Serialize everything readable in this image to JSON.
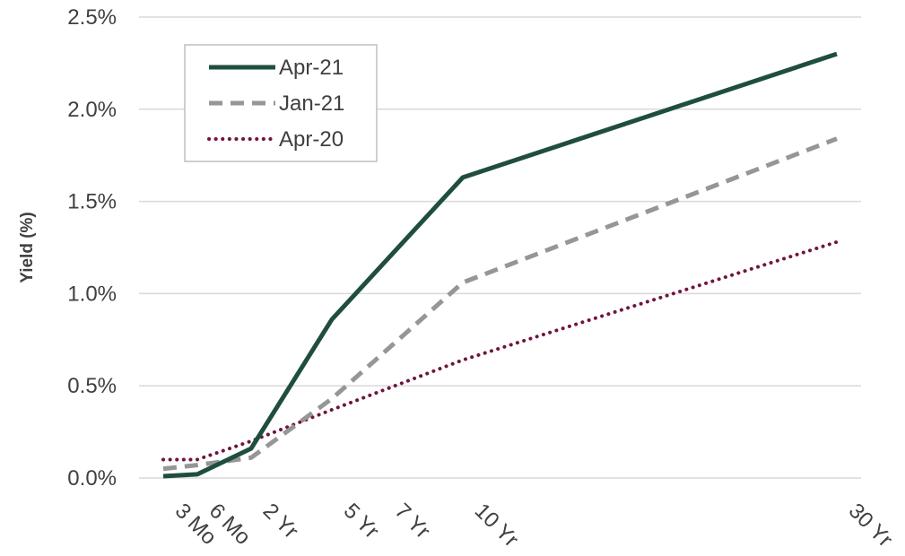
{
  "chart_data": {
    "type": "line",
    "title": "",
    "xlabel": "",
    "ylabel": "Yield (%)",
    "x_positions": [
      0.25,
      0.5,
      2,
      5,
      7,
      10,
      30
    ],
    "x_tick_labels": [
      "3 Mo",
      "6 Mo",
      "2 Yr",
      "5 Yr",
      "7 Yr",
      "10 Yr",
      "30 Yr"
    ],
    "y_range": [
      0,
      2.5
    ],
    "y_ticks": [
      0,
      0.5,
      1.0,
      1.5,
      2.0,
      2.5
    ],
    "y_tick_labels": [
      "0.0%",
      "0.5%",
      "1.0%",
      "1.5%",
      "2.0%",
      "2.5%"
    ],
    "grid": "horizontal",
    "legend_position": "top-left",
    "series": [
      {
        "name": "Apr-21",
        "color": "#1f4e3d",
        "style": "solid",
        "points": [
          {
            "x": 0.25,
            "y": 0.01
          },
          {
            "x": 0.5,
            "y": 0.02
          },
          {
            "x": 2,
            "y": 0.16
          },
          {
            "x": 5,
            "y": 0.86
          },
          {
            "x": 10,
            "y": 1.63
          },
          {
            "x": 30,
            "y": 2.3
          }
        ]
      },
      {
        "name": "Jan-21",
        "color": "#969696",
        "style": "dashed",
        "points": [
          {
            "x": 0.25,
            "y": 0.05
          },
          {
            "x": 0.5,
            "y": 0.07
          },
          {
            "x": 2,
            "y": 0.11
          },
          {
            "x": 5,
            "y": 0.43
          },
          {
            "x": 10,
            "y": 1.06
          },
          {
            "x": 30,
            "y": 1.84
          }
        ]
      },
      {
        "name": "Apr-20",
        "color": "#70143f",
        "style": "dotted",
        "points": [
          {
            "x": 0.25,
            "y": 0.1
          },
          {
            "x": 0.5,
            "y": 0.1
          },
          {
            "x": 2,
            "y": 0.2
          },
          {
            "x": 5,
            "y": 0.37
          },
          {
            "x": 10,
            "y": 0.64
          },
          {
            "x": 30,
            "y": 1.28
          }
        ]
      }
    ]
  }
}
